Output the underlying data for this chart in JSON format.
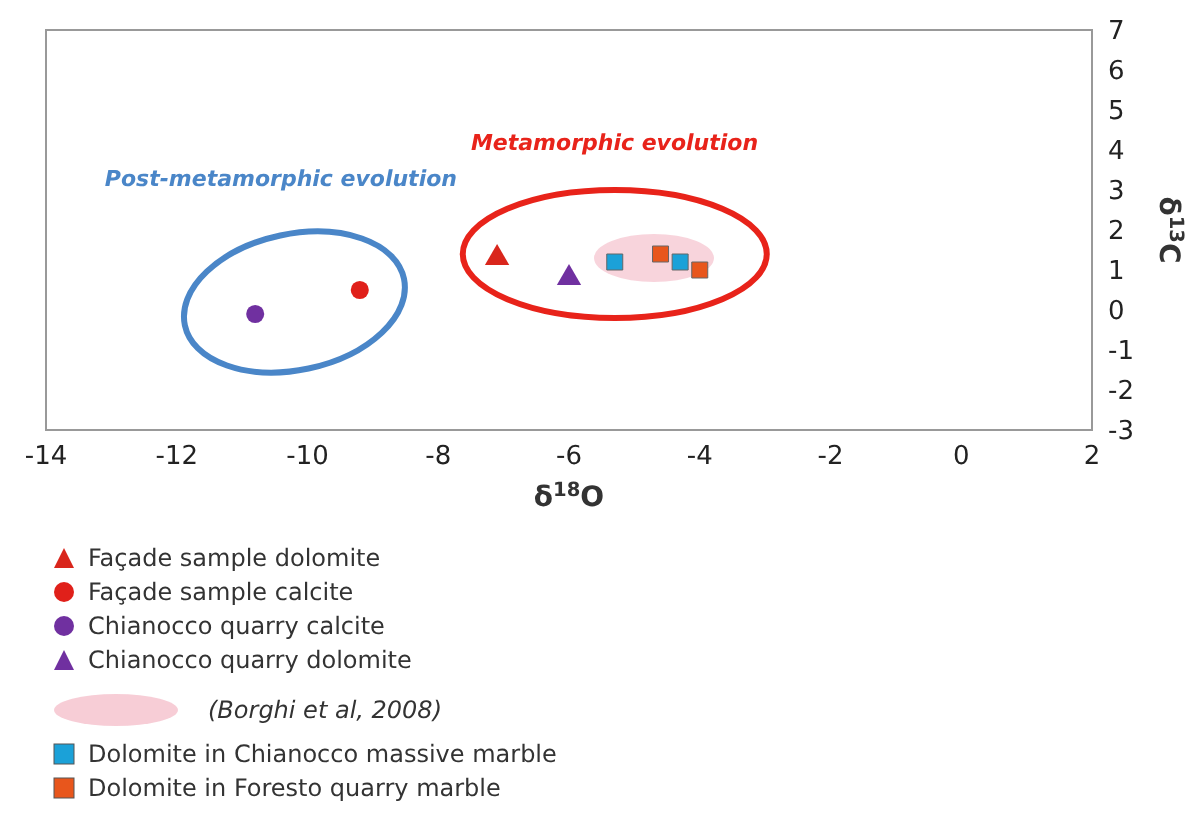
{
  "chart_data": {
    "type": "scatter",
    "xlabel": "δ$^{18}$O",
    "ylabel": "δ$^{13}$C",
    "xlim": [
      -14,
      2
    ],
    "xticks": [
      -14,
      -12,
      -10,
      -8,
      -6,
      -4,
      -2,
      0,
      2
    ],
    "ylim": [
      -3,
      7
    ],
    "yticks": [
      -3,
      -2,
      -1,
      0,
      1,
      2,
      3,
      4,
      5,
      6,
      7
    ],
    "legend": "bottom",
    "series": [
      {
        "name": "Façade sample dolomite",
        "color": "#d9261c",
        "marker": "triangle",
        "x": [
          -7.1
        ],
        "values": [
          1.3
        ]
      },
      {
        "name": "Façade sample calcite",
        "color": "#e0201a",
        "marker": "circle",
        "x": [
          -9.2
        ],
        "values": [
          0.5
        ]
      },
      {
        "name": "Chianocco quarry calcite",
        "color": "#7030a0",
        "marker": "circle",
        "x": [
          -10.8
        ],
        "values": [
          -0.1
        ]
      },
      {
        "name": "Chianocco quarry dolomite",
        "color": "#7030a0",
        "marker": "triangle",
        "x": [
          -6.0
        ],
        "values": [
          0.8
        ]
      },
      {
        "name": "Dolomite in Chianocco massive marble",
        "color": "#1ba1d8",
        "marker": "square",
        "x": [
          -5.3,
          -4.3
        ],
        "values": [
          1.2,
          1.2
        ]
      },
      {
        "name": "Dolomite in Foresto quarry marble",
        "color": "#e8561c",
        "marker": "square",
        "x": [
          -4.6,
          -4.0
        ],
        "values": [
          1.4,
          1.0
        ]
      }
    ],
    "annotations": [
      "Metamorphic evolution",
      "Post-metamorphic evolution",
      "(Borghi et al, 2008)"
    ]
  }
}
